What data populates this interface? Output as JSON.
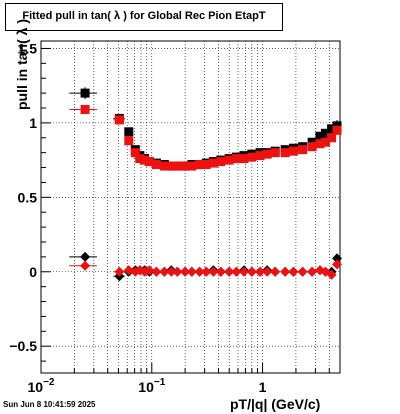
{
  "title": "Fitted pull in tan( λ  ) for Global Rec Pion EtapT",
  "datestamp": "Sun Jun  8 10:41:59 2025",
  "chart_data": {
    "type": "scatter",
    "title": "Fitted pull in tan( λ  ) for Global Rec Pion EtapT",
    "xlabel": "pT/|q| (GeV/c)",
    "ylabel": "pull in tan( λ  )",
    "xscale": "log",
    "xlim": [
      0.01,
      5.0
    ],
    "ylim": [
      -0.68,
      1.55
    ],
    "grid": true,
    "yticks": [
      -0.5,
      0,
      0.5,
      1,
      1.5
    ],
    "ytick_labels": [
      "−0.5",
      "0",
      "0.5",
      "1",
      "1.5"
    ],
    "xtick_labels": [
      {
        "value": 0.01,
        "base": "10",
        "exp": "−2"
      },
      {
        "value": 0.1,
        "base": "10",
        "exp": "−1"
      },
      {
        "value": 1,
        "base": "1",
        "exp": ""
      }
    ],
    "series": [
      {
        "color": "#000000",
        "marker": "square",
        "x": [
          0.025,
          0.051,
          0.062,
          0.071,
          0.078,
          0.086,
          0.095,
          0.11,
          0.13,
          0.15,
          0.17,
          0.2,
          0.23,
          0.27,
          0.31,
          0.36,
          0.42,
          0.5,
          0.58,
          0.68,
          0.8,
          0.95,
          1.1,
          1.3,
          1.6,
          1.9,
          2.3,
          2.8,
          3.3,
          3.7,
          4.2,
          4.7
        ],
        "y": [
          1.2,
          1.03,
          0.94,
          0.82,
          0.78,
          0.76,
          0.74,
          0.73,
          0.72,
          0.71,
          0.71,
          0.71,
          0.72,
          0.72,
          0.73,
          0.74,
          0.75,
          0.76,
          0.77,
          0.78,
          0.79,
          0.8,
          0.8,
          0.81,
          0.82,
          0.83,
          0.84,
          0.87,
          0.91,
          0.93,
          0.96,
          0.98
        ],
        "xerr": [
          [
            0.018,
            0.032
          ],
          [
            0.045,
            0.057
          ]
        ],
        "yerr_first": 0.04
      },
      {
        "color": "#ee1111",
        "marker": "square",
        "x": [
          0.025,
          0.051,
          0.062,
          0.071,
          0.078,
          0.086,
          0.095,
          0.11,
          0.13,
          0.15,
          0.17,
          0.2,
          0.23,
          0.27,
          0.31,
          0.36,
          0.42,
          0.5,
          0.58,
          0.68,
          0.8,
          0.95,
          1.1,
          1.3,
          1.6,
          1.9,
          2.3,
          2.8,
          3.3,
          3.7,
          4.2,
          4.7
        ],
        "y": [
          1.09,
          1.02,
          0.88,
          0.8,
          0.76,
          0.75,
          0.74,
          0.72,
          0.71,
          0.71,
          0.71,
          0.71,
          0.71,
          0.72,
          0.72,
          0.73,
          0.74,
          0.75,
          0.76,
          0.76,
          0.77,
          0.78,
          0.79,
          0.8,
          0.8,
          0.81,
          0.82,
          0.84,
          0.86,
          0.87,
          0.9,
          0.95
        ],
        "xerr": [
          [
            0.018,
            0.032
          ],
          [
            0.045,
            0.057
          ]
        ],
        "yerr_first": 0.03
      },
      {
        "color": "#000000",
        "marker": "diamond",
        "x": [
          0.025,
          0.051,
          0.062,
          0.071,
          0.078,
          0.086,
          0.095,
          0.11,
          0.13,
          0.15,
          0.17,
          0.2,
          0.23,
          0.27,
          0.31,
          0.36,
          0.42,
          0.5,
          0.58,
          0.68,
          0.8,
          0.95,
          1.1,
          1.3,
          1.6,
          1.9,
          2.3,
          2.8,
          3.3,
          3.7,
          4.2,
          4.7
        ],
        "y": [
          0.1,
          -0.03,
          0.0,
          0.01,
          0.01,
          0.01,
          0.0,
          0.0,
          0.0,
          0.01,
          0.0,
          0.0,
          0.0,
          0.0,
          0.0,
          0.01,
          0.0,
          0.0,
          0.0,
          0.01,
          0.0,
          0.0,
          0.01,
          0.0,
          0.0,
          0.0,
          0.0,
          0.0,
          0.01,
          0.0,
          0.0,
          0.09
        ],
        "xerr": [
          [
            0.018,
            0.032
          ],
          [
            0.045,
            0.057
          ]
        ],
        "yerr_first": 0.03
      },
      {
        "color": "#ee1111",
        "marker": "diamond",
        "x": [
          0.025,
          0.051,
          0.062,
          0.071,
          0.078,
          0.086,
          0.095,
          0.11,
          0.13,
          0.15,
          0.17,
          0.2,
          0.23,
          0.27,
          0.31,
          0.36,
          0.42,
          0.5,
          0.58,
          0.68,
          0.8,
          0.95,
          1.1,
          1.3,
          1.6,
          1.9,
          2.3,
          2.8,
          3.3,
          3.7,
          4.2,
          4.7
        ],
        "y": [
          0.04,
          0.0,
          0.01,
          0.0,
          0.01,
          0.0,
          0.01,
          0.0,
          0.0,
          0.0,
          0.0,
          0.0,
          0.0,
          0.0,
          0.0,
          0.0,
          0.0,
          0.0,
          0.0,
          0.0,
          0.0,
          0.0,
          0.0,
          0.0,
          0.0,
          0.0,
          0.0,
          0.0,
          0.01,
          0.0,
          -0.02,
          0.05
        ],
        "xerr": [
          [
            0.018,
            0.032
          ],
          [
            0.045,
            0.057
          ]
        ],
        "yerr_first": 0.02
      }
    ]
  }
}
